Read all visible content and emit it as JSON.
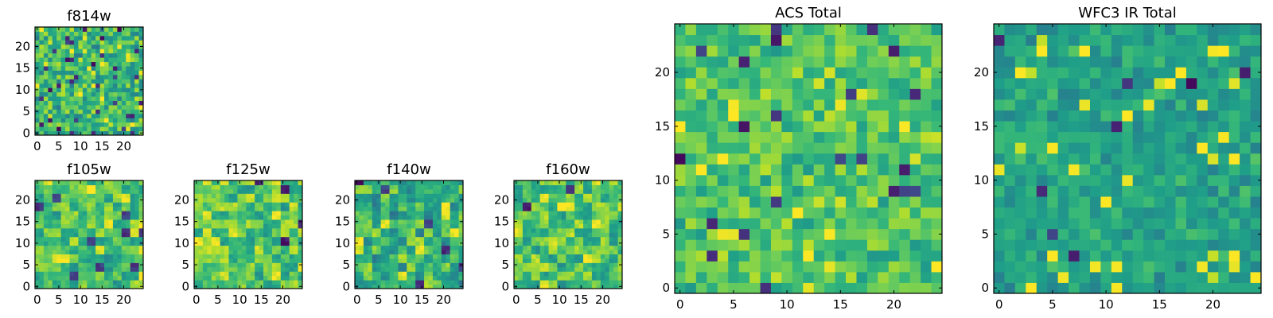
{
  "chart_data": [
    {
      "type": "heatmap",
      "title": "f814w",
      "xticks": [
        "0",
        "5",
        "10",
        "15",
        "20"
      ],
      "yticks": [
        "0",
        "5",
        "10",
        "15",
        "20"
      ],
      "xlim": [
        -0.5,
        24.5
      ],
      "ylim": [
        -0.5,
        24.5
      ],
      "grid_size": 25,
      "colormap": "viridis",
      "seed": 11,
      "mid": 0.66,
      "spread": 0.2,
      "block": 1,
      "dark_prob": 0.06
    },
    {
      "type": "heatmap",
      "title": "f105w",
      "xticks": [
        "0",
        "5",
        "10",
        "15",
        "20"
      ],
      "yticks": [
        "0",
        "5",
        "10",
        "15",
        "20"
      ],
      "xlim": [
        -0.5,
        24.5
      ],
      "ylim": [
        -0.5,
        24.5
      ],
      "grid_size": 25,
      "colormap": "viridis",
      "seed": 23,
      "mid": 0.7,
      "spread": 0.18,
      "block": 2,
      "dark_prob": 0.04
    },
    {
      "type": "heatmap",
      "title": "f125w",
      "xticks": [
        "0",
        "5",
        "10",
        "15",
        "20"
      ],
      "yticks": [
        "0",
        "5",
        "10",
        "15",
        "20"
      ],
      "xlim": [
        -0.5,
        24.5
      ],
      "ylim": [
        -0.5,
        24.5
      ],
      "grid_size": 25,
      "colormap": "viridis",
      "seed": 37,
      "mid": 0.72,
      "spread": 0.2,
      "block": 2,
      "dark_prob": 0.04
    },
    {
      "type": "heatmap",
      "title": "f140w",
      "xticks": [
        "0",
        "5",
        "10",
        "15",
        "20"
      ],
      "yticks": [
        "0",
        "5",
        "10",
        "15",
        "20"
      ],
      "xlim": [
        -0.5,
        24.5
      ],
      "ylim": [
        -0.5,
        24.5
      ],
      "grid_size": 25,
      "colormap": "viridis",
      "seed": 41,
      "mid": 0.64,
      "spread": 0.22,
      "block": 2,
      "dark_prob": 0.06
    },
    {
      "type": "heatmap",
      "title": "f160w",
      "xticks": [
        "0",
        "5",
        "10",
        "15",
        "20"
      ],
      "yticks": [
        "0",
        "5",
        "10",
        "15",
        "20"
      ],
      "xlim": [
        -0.5,
        24.5
      ],
      "ylim": [
        -0.5,
        24.5
      ],
      "grid_size": 25,
      "colormap": "viridis",
      "seed": 53,
      "mid": 0.72,
      "spread": 0.2,
      "block": 2,
      "dark_prob": 0.05
    },
    {
      "type": "heatmap",
      "title": "ACS Total",
      "xticks": [
        "0",
        "5",
        "10",
        "15",
        "20"
      ],
      "yticks": [
        "0",
        "5",
        "10",
        "15",
        "20"
      ],
      "xlim": [
        -0.5,
        24.5
      ],
      "ylim": [
        -0.5,
        24.5
      ],
      "grid_size": 25,
      "colormap": "viridis",
      "seed": 67,
      "mid": 0.72,
      "spread": 0.14,
      "block": 1,
      "dark_prob": 0.03
    },
    {
      "type": "heatmap",
      "title": "WFC3 IR Total",
      "xticks": [
        "0",
        "5",
        "10",
        "15",
        "20"
      ],
      "yticks": [
        "0",
        "5",
        "10",
        "15",
        "20"
      ],
      "xlim": [
        -0.5,
        24.5
      ],
      "ylim": [
        -0.5,
        24.5
      ],
      "grid_size": 25,
      "colormap": "viridis",
      "seed": 79,
      "mid": 0.58,
      "spread": 0.1,
      "block": 1,
      "dark_prob": 0.03
    }
  ]
}
